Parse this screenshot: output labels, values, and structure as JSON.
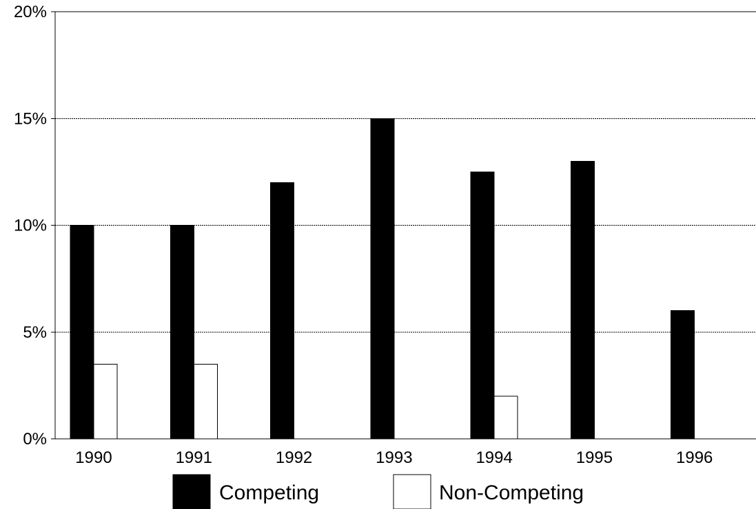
{
  "chart_data": {
    "type": "bar",
    "title": "",
    "xlabel": "",
    "ylabel": "",
    "categories": [
      "1990",
      "1991",
      "1992",
      "1993",
      "1994",
      "1995",
      "1996"
    ],
    "series": [
      {
        "name": "Competing",
        "values": [
          10,
          10,
          12,
          15,
          12.5,
          13,
          6
        ],
        "color": "#000000"
      },
      {
        "name": "Non-Competing",
        "values": [
          3.5,
          3.5,
          0,
          0,
          2,
          0,
          0
        ],
        "color": "#ffffff"
      }
    ],
    "ylim": [
      0,
      20
    ],
    "y_ticks": [
      0,
      5,
      10,
      15,
      20
    ],
    "y_tick_labels": [
      "0%",
      "5%",
      "10%",
      "15%",
      "20%"
    ],
    "grid": "horizontal dashed",
    "legend_position": "bottom"
  }
}
